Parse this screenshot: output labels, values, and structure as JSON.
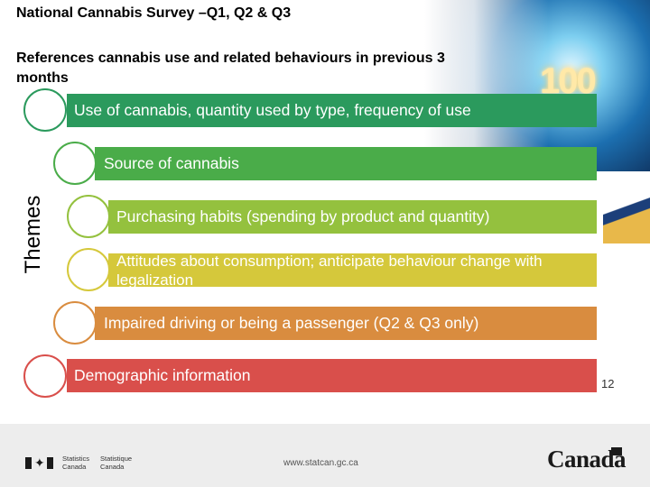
{
  "slide": {
    "title": "National Cannabis Survey –Q1, Q2 & Q3",
    "subtitle": "References cannabis use and related behaviours in previous 3 months",
    "themes_label": "Themes",
    "page_number": "12"
  },
  "themes": [
    {
      "label": "Use of cannabis, quantity used by type, frequency of use",
      "color": "#2b9a5d"
    },
    {
      "label": "Source of cannabis",
      "color": "#4aac49"
    },
    {
      "label": "Purchasing habits (spending by product and quantity)",
      "color": "#94c13e"
    },
    {
      "label": "Attitudes about consumption; anticipate behaviour change with legalization",
      "color": "#d5c83b"
    },
    {
      "label": "Impaired driving or being a passenger (Q2 & Q3 only)",
      "color": "#d98c3f"
    },
    {
      "label": "Demographic information",
      "color": "#d94f4b"
    }
  ],
  "decoration": {
    "number": "100"
  },
  "footer": {
    "agency_en_line1": "Statistics",
    "agency_en_line2": "Canada",
    "agency_fr_line1": "Statistique",
    "agency_fr_line2": "Canada",
    "url": "www.statcan.gc.ca",
    "wordmark": "Canada"
  }
}
